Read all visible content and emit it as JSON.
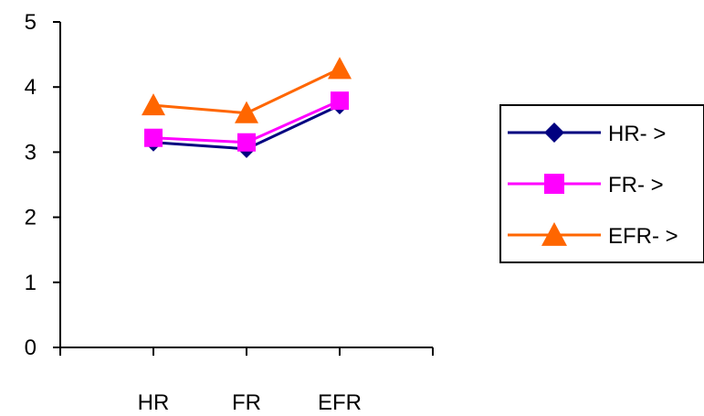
{
  "chart_data": {
    "type": "line",
    "categories": [
      "HR",
      "FR",
      "EFR"
    ],
    "ylim": [
      0,
      5
    ],
    "y_ticks": [
      "0",
      "1",
      "2",
      "3",
      "4",
      "5"
    ],
    "grid": false,
    "legend_position": "right",
    "series": [
      {
        "name": "HR- >",
        "values": [
          3.15,
          3.05,
          3.72
        ],
        "color": "#000080",
        "marker": "diamond"
      },
      {
        "name": "FR- >",
        "values": [
          3.22,
          3.15,
          3.79
        ],
        "color": "#ff00ff",
        "marker": "square"
      },
      {
        "name": "EFR- >",
        "values": [
          3.72,
          3.6,
          4.28
        ],
        "color": "#ff6600",
        "marker": "triangle"
      }
    ]
  }
}
